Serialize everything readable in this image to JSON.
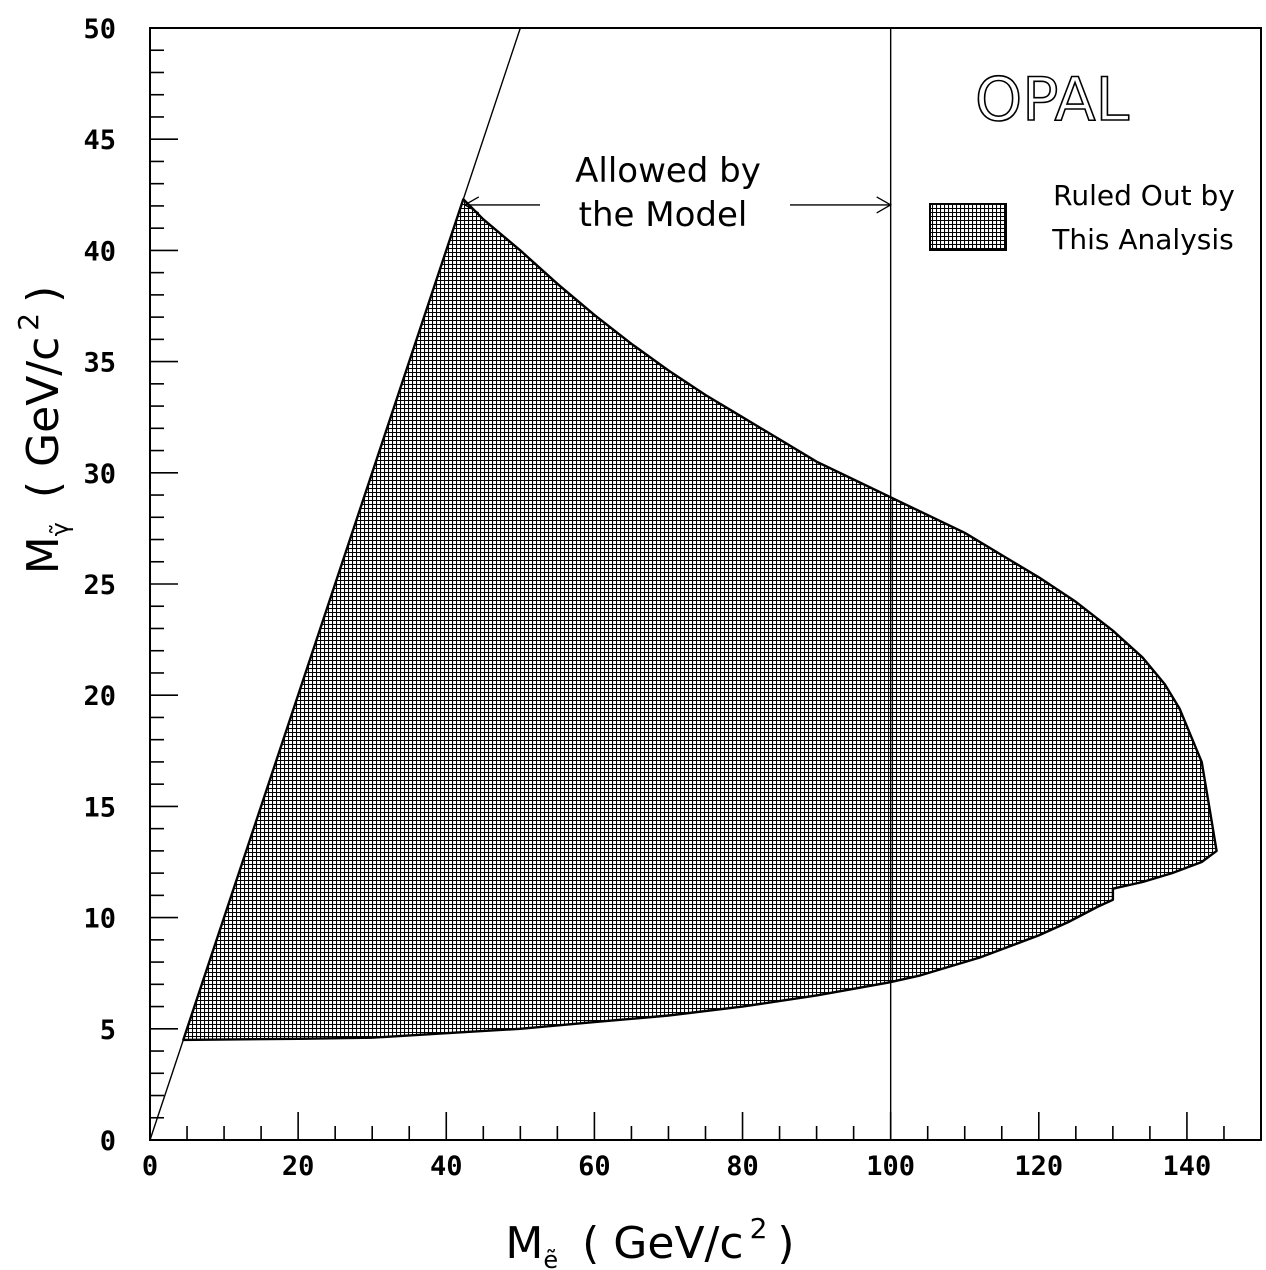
{
  "chart_data": {
    "type": "area",
    "brand": "OPAL",
    "xlabel": {
      "symbol": "M",
      "subscript": "ẽ",
      "unit_open": "( GeV/c",
      "unit_power": "2",
      "unit_close": ")"
    },
    "ylabel": {
      "symbol": "M",
      "subscript": "γ̃",
      "unit_open": "( GeV/c",
      "unit_power": "2",
      "unit_close": ")"
    },
    "xlim": [
      0,
      150
    ],
    "ylim": [
      0,
      50
    ],
    "x_ticks": [
      "0",
      "20",
      "40",
      "60",
      "80",
      "100",
      "120",
      "140"
    ],
    "y_ticks": [
      "0",
      "5",
      "10",
      "15",
      "20",
      "25",
      "30",
      "35",
      "40",
      "45",
      "50"
    ],
    "x_major_step": 20,
    "x_minor_step": 5,
    "y_major_step": 5,
    "y_minor_step": 1,
    "grid": false,
    "annotation": {
      "line1": "Allowed by",
      "line2": "the Model",
      "arrow_from_x": 42.5,
      "arrow_to_x": 100,
      "arrow_y": 42.0
    },
    "legend": {
      "line1": "Ruled Out by",
      "line2": "This Analysis",
      "placement": "top-right"
    },
    "reference_lines": [
      {
        "kind": "diagonal",
        "points": [
          [
            0,
            0
          ],
          [
            50,
            50
          ]
        ]
      },
      {
        "kind": "vertical",
        "x": 100
      }
    ],
    "series": [
      {
        "name": "Ruled Out by This Analysis",
        "fill": "crosshatch",
        "polygon": [
          [
            4.5,
            4.5
          ],
          [
            42.3,
            42.3
          ],
          [
            45,
            41.4
          ],
          [
            50,
            40.0
          ],
          [
            55,
            38.5
          ],
          [
            60,
            37.1
          ],
          [
            65,
            35.8
          ],
          [
            70,
            34.6
          ],
          [
            75,
            33.5
          ],
          [
            80,
            32.5
          ],
          [
            85,
            31.5
          ],
          [
            90,
            30.5
          ],
          [
            95,
            29.7
          ],
          [
            100,
            28.9
          ],
          [
            105,
            28.1
          ],
          [
            110,
            27.3
          ],
          [
            115,
            26.3
          ],
          [
            120,
            25.3
          ],
          [
            125,
            24.2
          ],
          [
            130,
            22.9
          ],
          [
            134,
            21.7
          ],
          [
            137,
            20.5
          ],
          [
            139,
            19.4
          ],
          [
            140.5,
            18.2
          ],
          [
            142,
            17.0
          ],
          [
            143,
            15.0
          ],
          [
            144,
            13.0
          ],
          [
            142,
            12.5
          ],
          [
            138,
            12.0
          ],
          [
            134,
            11.6
          ],
          [
            130,
            11.3
          ],
          [
            130,
            10.8
          ],
          [
            128,
            10.5
          ],
          [
            124,
            9.8
          ],
          [
            120,
            9.2
          ],
          [
            116,
            8.7
          ],
          [
            112,
            8.2
          ],
          [
            108,
            7.8
          ],
          [
            104,
            7.4
          ],
          [
            100,
            7.1
          ],
          [
            95,
            6.8
          ],
          [
            90,
            6.5
          ],
          [
            80,
            6.0
          ],
          [
            70,
            5.6
          ],
          [
            60,
            5.3
          ],
          [
            50,
            5.0
          ],
          [
            40,
            4.8
          ],
          [
            30,
            4.6
          ],
          [
            20,
            4.55
          ],
          [
            4.5,
            4.5
          ]
        ]
      }
    ]
  }
}
